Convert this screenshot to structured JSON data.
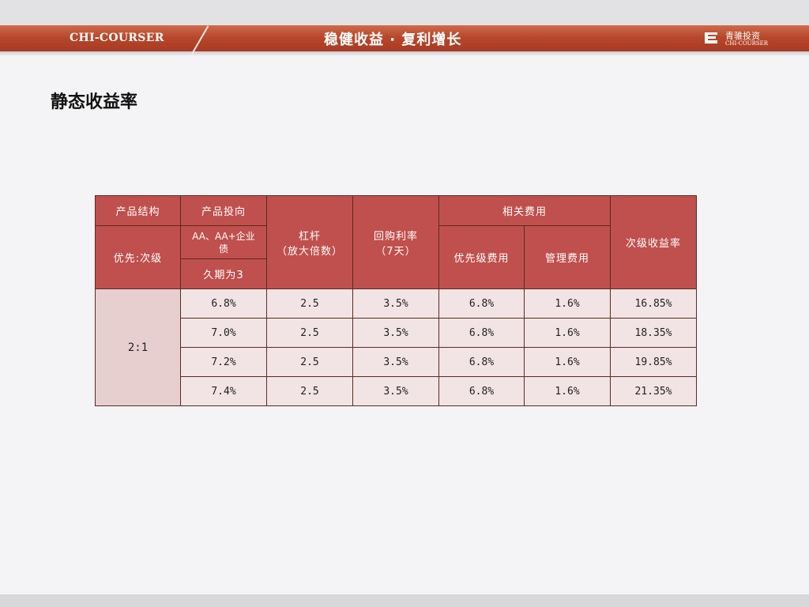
{
  "header": {
    "brand_left": "CHI-COURSER",
    "slogan": "稳健收益 · 复利增长",
    "logo_cn": "青骓投资",
    "logo_en": "CHI-COURSER"
  },
  "page": {
    "title": "静态收益率"
  },
  "table": {
    "h_structure": "产品结构",
    "h_direction": "产品投向",
    "h_leverage": "杠杆\n（放大倍数）",
    "h_repo": "回购利率\n（7天）",
    "h_fees": "相关费用",
    "h_sub_yield": "次级收益率",
    "h_priority": "优先:次级",
    "h_bonds": "AA、AA+企业\n债",
    "h_priority_fee": "优先级费用",
    "h_mgmt_fee": "管理费用",
    "h_duration": "久期为3",
    "ratio": "2:1",
    "rows": [
      [
        "6.8%",
        "2.5",
        "3.5%",
        "6.8%",
        "1.6%",
        "16.85%"
      ],
      [
        "7.0%",
        "2.5",
        "3.5%",
        "6.8%",
        "1.6%",
        "18.35%"
      ],
      [
        "7.2%",
        "2.5",
        "3.5%",
        "6.8%",
        "1.6%",
        "19.85%"
      ],
      [
        "7.4%",
        "2.5",
        "3.5%",
        "6.8%",
        "1.6%",
        "21.35%"
      ]
    ]
  },
  "colors": {
    "header_red": "#c0504d",
    "banner_red": "#b8482c",
    "ratio_cell": "#e8cfcf",
    "data_cell": "#f2e4e4"
  }
}
